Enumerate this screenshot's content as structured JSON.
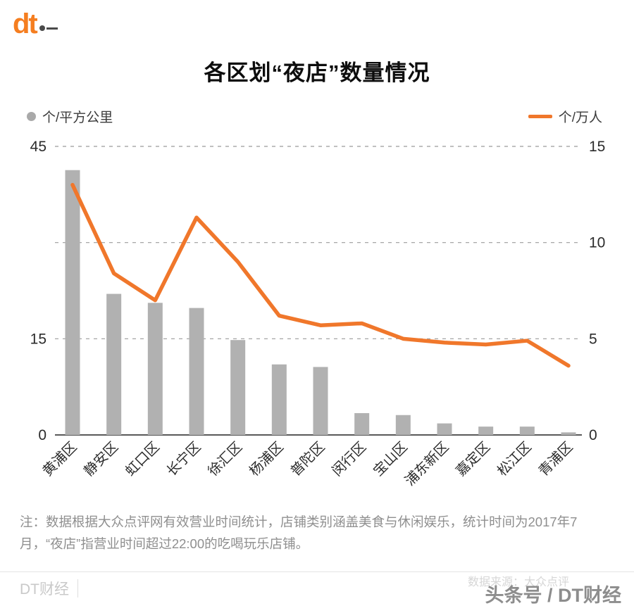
{
  "logo": {
    "text": "dt"
  },
  "title": "各区划“夜店”数量情况",
  "legend": {
    "left": "个/平方公里",
    "right": "个/万人"
  },
  "colors": {
    "bar": "#b1b1b1",
    "line": "#f0772b",
    "grid": "#9b9b9b",
    "axis": "#222222",
    "tick_text": "#2b2b2b",
    "accent": "#f57e20"
  },
  "chart_data": {
    "type": "bar",
    "subtype": "bar+line dual axis",
    "title": "各区划“夜店”数量情况",
    "categories": [
      "黄浦区",
      "静安区",
      "虹口区",
      "长宁区",
      "徐汇区",
      "杨浦区",
      "普陀区",
      "闵行区",
      "宝山区",
      "浦东新区",
      "嘉定区",
      "松江区",
      "青浦区"
    ],
    "series": [
      {
        "name": "个/平方公里",
        "type": "bar",
        "axis": "left",
        "values": [
          41.3,
          22.0,
          20.6,
          19.8,
          14.8,
          11.0,
          10.6,
          3.4,
          3.1,
          1.8,
          1.3,
          1.3,
          0.4
        ]
      },
      {
        "name": "个/万人",
        "type": "line",
        "axis": "right",
        "values": [
          13.0,
          8.4,
          7.0,
          11.3,
          9.0,
          6.2,
          5.7,
          5.8,
          5.0,
          4.8,
          4.7,
          4.9,
          3.6
        ]
      }
    ],
    "left_axis": {
      "label": "个/平方公里",
      "ticks": [
        45,
        15,
        0
      ],
      "max": 45,
      "min": 0
    },
    "right_axis": {
      "label": "个/万人",
      "ticks": [
        15,
        10,
        5,
        0
      ],
      "max": 15,
      "min": 0
    },
    "grid": "dashed horizontal at right-axis 15/10/5, solid baseline at 0",
    "legend_position": "top, split left/right"
  },
  "note": "注：数据根据大众点评网有效营业时间统计，店铺类别涵盖美食与休闲娱乐，统计时间为2017年7月，“夜店”指营业时间超过22:00的吃喝玩乐店铺。",
  "footer": {
    "brand": "DT财经",
    "source": "数据来源：大众点评",
    "watermark": "头条号 / DT财经"
  }
}
